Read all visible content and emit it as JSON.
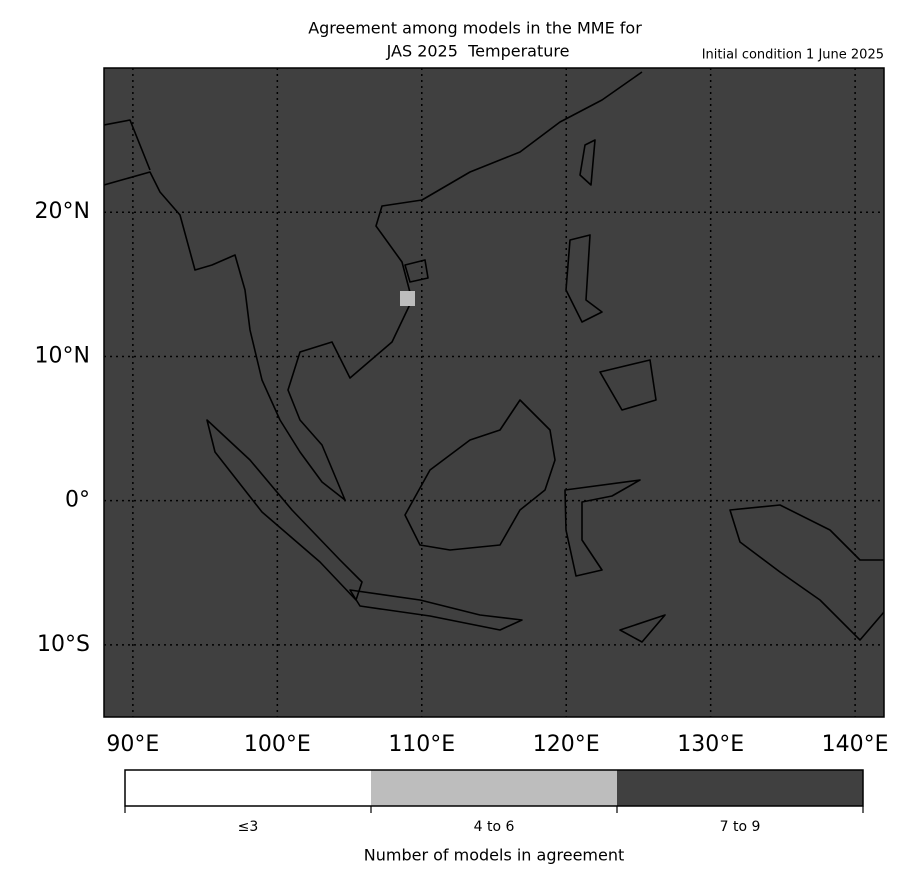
{
  "header": {
    "title_line1": "Agreement among models in the MME for",
    "title_line2": "JAS 2025  Temperature",
    "initial_condition": "Initial condition 1 June 2025"
  },
  "map": {
    "xlim": [
      88,
      142
    ],
    "ylim": [
      -15,
      30
    ],
    "xticks": [
      {
        "value": 90,
        "label": "90°E"
      },
      {
        "value": 100,
        "label": "100°E"
      },
      {
        "value": 110,
        "label": "110°E"
      },
      {
        "value": 120,
        "label": "120°E"
      },
      {
        "value": 130,
        "label": "130°E"
      },
      {
        "value": 140,
        "label": "140°E"
      }
    ],
    "yticks": [
      {
        "value": -10,
        "label": "10°S"
      },
      {
        "value": 0,
        "label": "0°"
      },
      {
        "value": 10,
        "label": "10°N"
      },
      {
        "value": 20,
        "label": "20°N"
      }
    ],
    "grid": true
  },
  "colorbar": {
    "title": "Number of models in agreement",
    "items": [
      {
        "label": "≤3",
        "color": "#ffffff"
      },
      {
        "label": "4 to 6",
        "color": "#bdbdbd"
      },
      {
        "label": "7 to 9",
        "color": "#404040"
      }
    ]
  }
}
